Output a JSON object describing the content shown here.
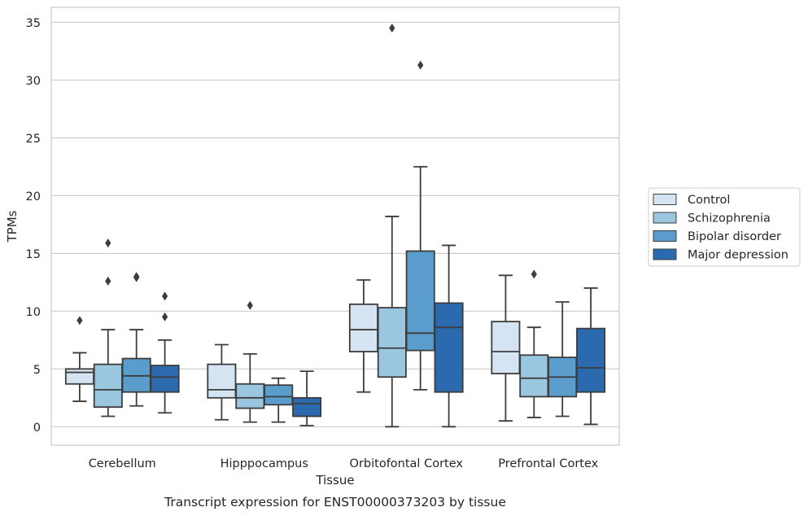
{
  "chart_data": {
    "type": "box",
    "title": "Transcript expression for ENST00000373203 by tissue",
    "xlabel": "Tissue",
    "ylabel": "TPMs",
    "ylim": [
      -1.6,
      36.3
    ],
    "yticks": [
      0,
      5,
      10,
      15,
      20,
      25,
      30,
      35
    ],
    "grid": true,
    "legend_placement": "outside-right",
    "categories": [
      "Cerebellum",
      "Hipppocampus",
      "Orbitofontal Cortex",
      "Prefrontal Cortex"
    ],
    "series": [
      {
        "name": "Control",
        "color": "#d4e4f2",
        "boxes": [
          {
            "whislo": 2.2,
            "q1": 3.7,
            "med": 4.7,
            "q3": 5.0,
            "whishi": 6.4,
            "fliers": [
              9.2
            ]
          },
          {
            "whislo": 0.6,
            "q1": 2.5,
            "med": 3.2,
            "q3": 5.4,
            "whishi": 7.1,
            "fliers": []
          },
          {
            "whislo": 3.0,
            "q1": 6.5,
            "med": 8.4,
            "q3": 10.6,
            "whishi": 12.7,
            "fliers": []
          },
          {
            "whislo": 0.5,
            "q1": 4.6,
            "med": 6.5,
            "q3": 9.1,
            "whishi": 13.1,
            "fliers": []
          }
        ]
      },
      {
        "name": "Schizophrenia",
        "color": "#9bc6df",
        "boxes": [
          {
            "whislo": 0.9,
            "q1": 1.7,
            "med": 3.2,
            "q3": 5.4,
            "whishi": 8.4,
            "fliers": [
              12.6,
              15.9
            ]
          },
          {
            "whislo": 0.4,
            "q1": 1.6,
            "med": 2.5,
            "q3": 3.7,
            "whishi": 6.3,
            "fliers": [
              10.5
            ]
          },
          {
            "whislo": 0.0,
            "q1": 4.3,
            "med": 6.8,
            "q3": 10.3,
            "whishi": 18.2,
            "fliers": [
              34.5
            ]
          },
          {
            "whislo": 0.8,
            "q1": 2.6,
            "med": 4.2,
            "q3": 6.2,
            "whishi": 8.6,
            "fliers": [
              13.2
            ]
          }
        ]
      },
      {
        "name": "Bipolar disorder",
        "color": "#5a9dcc",
        "boxes": [
          {
            "whislo": 1.8,
            "q1": 3.0,
            "med": 4.4,
            "q3": 5.9,
            "whishi": 8.4,
            "fliers": [
              12.9,
              13.0
            ]
          },
          {
            "whislo": 0.4,
            "q1": 1.9,
            "med": 2.6,
            "q3": 3.6,
            "whishi": 4.2,
            "fliers": []
          },
          {
            "whislo": 3.2,
            "q1": 6.6,
            "med": 8.1,
            "q3": 15.2,
            "whishi": 22.5,
            "fliers": [
              31.3
            ]
          },
          {
            "whislo": 0.9,
            "q1": 2.6,
            "med": 4.3,
            "q3": 6.0,
            "whishi": 10.8,
            "fliers": []
          }
        ]
      },
      {
        "name": "Major depression",
        "color": "#2b6aae",
        "boxes": [
          {
            "whislo": 1.2,
            "q1": 3.0,
            "med": 4.3,
            "q3": 5.3,
            "whishi": 7.5,
            "fliers": [
              9.5,
              11.3
            ]
          },
          {
            "whislo": 0.1,
            "q1": 0.9,
            "med": 2.0,
            "q3": 2.5,
            "whishi": 4.8,
            "fliers": []
          },
          {
            "whislo": 0.0,
            "q1": 3.0,
            "med": 8.6,
            "q3": 10.7,
            "whishi": 15.7,
            "fliers": []
          },
          {
            "whislo": 0.2,
            "q1": 3.0,
            "med": 5.1,
            "q3": 8.5,
            "whishi": 12.0,
            "fliers": []
          }
        ]
      }
    ]
  }
}
